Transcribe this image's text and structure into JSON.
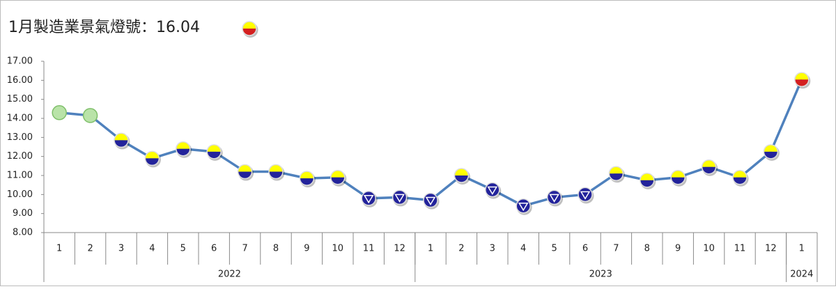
{
  "chart_data": {
    "type": "line",
    "title": "1月製造業景氣燈號：16.04",
    "title_signal": "yellow-red",
    "categories": [
      "1",
      "2",
      "3",
      "4",
      "5",
      "6",
      "7",
      "8",
      "9",
      "10",
      "11",
      "12",
      "1",
      "2",
      "3",
      "4",
      "5",
      "6",
      "7",
      "8",
      "9",
      "10",
      "11",
      "12",
      "1"
    ],
    "groups": [
      {
        "label": "2022",
        "span": 12
      },
      {
        "label": "2023",
        "span": 12
      },
      {
        "label": "2024",
        "span": 1
      }
    ],
    "values": [
      14.3,
      14.15,
      12.85,
      11.9,
      12.4,
      12.25,
      11.2,
      11.2,
      10.85,
      10.9,
      9.8,
      9.85,
      9.7,
      11.0,
      10.25,
      9.4,
      9.85,
      10.0,
      11.1,
      10.75,
      10.9,
      11.45,
      10.9,
      12.25,
      16.04
    ],
    "signals": [
      "green",
      "green",
      "yellow-blue",
      "yellow-blue",
      "yellow-blue",
      "yellow-blue",
      "yellow-blue",
      "yellow-blue",
      "yellow-blue",
      "yellow-blue",
      "blue",
      "blue",
      "blue",
      "yellow-blue",
      "blue",
      "blue",
      "blue",
      "blue",
      "yellow-blue",
      "yellow-blue",
      "yellow-blue",
      "yellow-blue",
      "yellow-blue",
      "yellow-blue",
      "yellow-red"
    ],
    "color": "#4f81bd",
    "signal_colors": {
      "green": "#b9e3a8",
      "yellow": "#ffff00",
      "blue": "#23239b",
      "red": "#d42020"
    },
    "ylim": [
      8,
      17
    ],
    "yticks": [
      {
        "value": 8,
        "label": "8.00"
      },
      {
        "value": 9,
        "label": "9.00"
      },
      {
        "value": 10,
        "label": "10.00"
      },
      {
        "value": 11,
        "label": "11.00"
      },
      {
        "value": 12,
        "label": "12.00"
      },
      {
        "value": 13,
        "label": "13.00"
      },
      {
        "value": 14,
        "label": "14.00"
      },
      {
        "value": 15,
        "label": "15.00"
      },
      {
        "value": 16,
        "label": "16.00"
      },
      {
        "value": 17,
        "label": "17.00"
      }
    ]
  }
}
